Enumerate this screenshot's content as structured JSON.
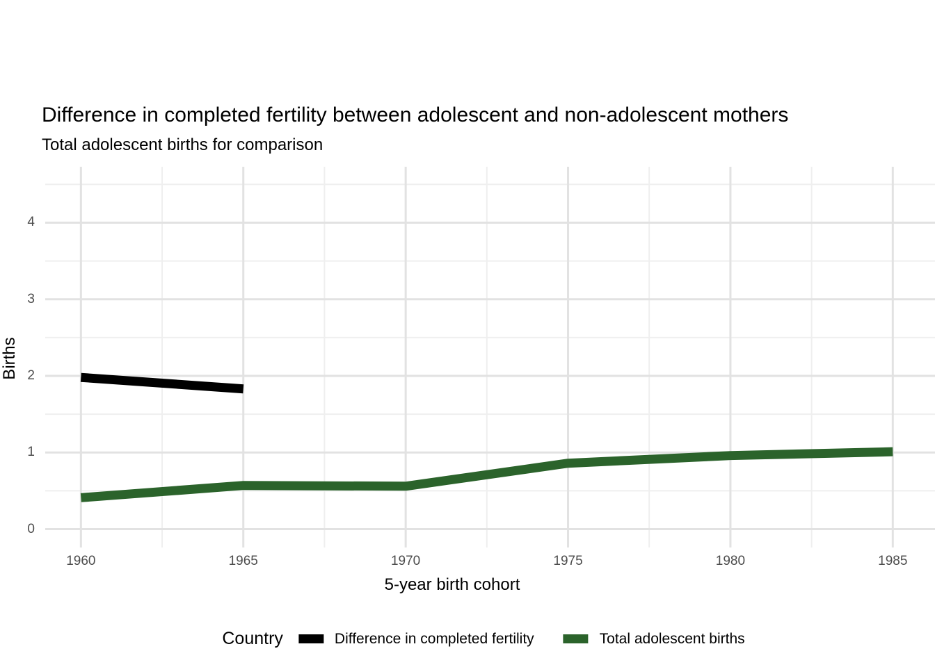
{
  "chart_data": {
    "type": "line",
    "title": "Difference in completed fertility between adolescent and non-adolescent mothers",
    "subtitle": "Total adolescent births for comparison",
    "xlabel": "5-year birth cohort",
    "ylabel": "Births",
    "series": [
      {
        "name": "Difference in completed fertility",
        "color": "#000000",
        "x": [
          1960,
          1965
        ],
        "values": [
          1.98,
          1.83
        ]
      },
      {
        "name": "Total adolescent births",
        "color": "#2b632b",
        "x": [
          1960,
          1965,
          1970,
          1975,
          1980,
          1985
        ],
        "values": [
          0.41,
          0.57,
          0.56,
          0.86,
          0.96,
          1.01
        ]
      }
    ],
    "x_ticks": [
      1960,
      1965,
      1970,
      1975,
      1980,
      1985
    ],
    "y_ticks": [
      0,
      1,
      2,
      3,
      4
    ],
    "xlim": [
      1958.9,
      1986.3
    ],
    "ylim": [
      -0.24,
      4.73
    ],
    "grid": {
      "major": true,
      "minor": true,
      "major_color": "#e2e2e2",
      "minor_color": "#efefef"
    },
    "legend": {
      "title": "Country",
      "position": "bottom"
    },
    "line_width": 13,
    "background": "#ffffff",
    "tick_label_color": "#4d4d4d",
    "text_color": "#000000"
  }
}
